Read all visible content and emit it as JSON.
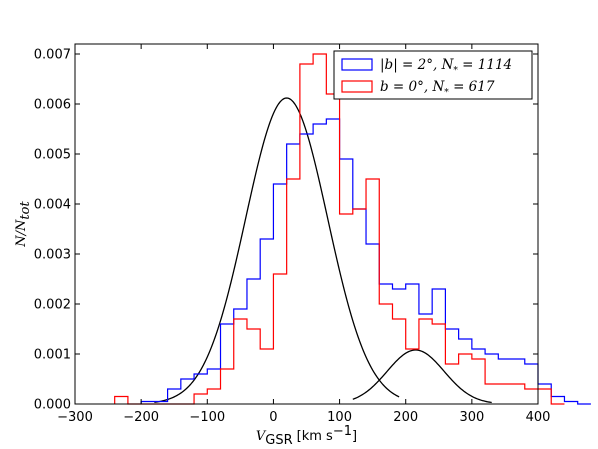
{
  "chart_data": {
    "type": "histogram",
    "xlabel": {
      "symbol": "V",
      "subscript": "GSR",
      "unit": "[km s",
      "unit_exp": "−1",
      "unit_close": "]"
    },
    "ylabel": {
      "symbol": "N/N",
      "subscript": "tot"
    },
    "xlim": [
      -300,
      400
    ],
    "ylim": [
      0,
      0.0072
    ],
    "xticks": [
      -300,
      -200,
      -100,
      0,
      100,
      200,
      300,
      400
    ],
    "xtick_labels": [
      "−300",
      "−200",
      "−100",
      "0",
      "100",
      "200",
      "300",
      "400"
    ],
    "yticks": [
      0,
      0.001,
      0.002,
      0.003,
      0.004,
      0.005,
      0.006,
      0.007
    ],
    "ytick_labels": [
      "0.000",
      "0.001",
      "0.002",
      "0.003",
      "0.004",
      "0.005",
      "0.006",
      "0.007"
    ],
    "legend_position": "top-right",
    "bin_width": 20,
    "series": [
      {
        "name": "|b| = 2°, N* = 1114",
        "legend_parts": [
          "|b| = 2°, ",
          "N",
          "*",
          " = 1114"
        ],
        "color": "#0000ff",
        "bin_start": -200,
        "values": [
          5e-05,
          5e-05,
          0.0003,
          0.0005,
          0.0006,
          0.0007,
          0.0016,
          0.0019,
          0.0025,
          0.0033,
          0.0044,
          0.0052,
          0.0054,
          0.0056,
          0.0057,
          0.0049,
          0.0039,
          0.0032,
          0.0024,
          0.0023,
          0.0024,
          0.0018,
          0.0023,
          0.0015,
          0.0013,
          0.0011,
          0.001,
          0.0009,
          0.0009,
          0.0008,
          0.0004,
          0.00015,
          5e-05,
          0.0
        ]
      },
      {
        "name": "b = 0°, N* = 617",
        "legend_parts": [
          "b = 0°, ",
          "N",
          "*",
          " = 617"
        ],
        "color": "#ff0000",
        "bin_start": -240,
        "values": [
          0.00015,
          0.0,
          0.0,
          0.0,
          0.0,
          0.0,
          0.0002,
          0.0003,
          0.0007,
          0.0017,
          0.0015,
          0.0011,
          0.0026,
          0.0045,
          0.0068,
          0.007,
          0.0062,
          0.0038,
          0.0039,
          0.0045,
          0.002,
          0.0017,
          0.0011,
          0.0017,
          0.0016,
          0.0008,
          0.001,
          0.0009,
          0.0004,
          0.0004,
          0.0004,
          0.0003,
          0.0003,
          0.0
        ]
      }
    ],
    "fit_curves": [
      {
        "mu": 20,
        "sigma": 62,
        "amplitude": 0.00612,
        "color": "#000000",
        "x_range": [
          -180,
          190
        ]
      },
      {
        "mu": 215,
        "sigma": 43,
        "amplitude": 0.00108,
        "color": "#000000",
        "x_range": [
          120,
          330
        ]
      }
    ]
  }
}
